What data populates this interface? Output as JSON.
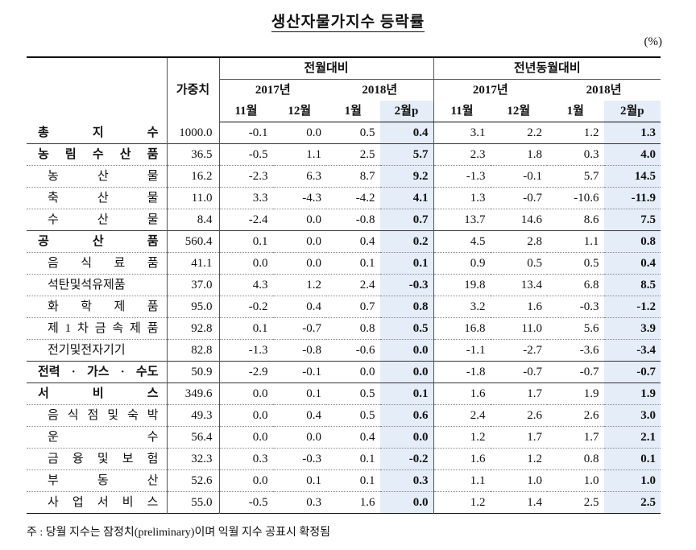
{
  "title": "생산자물가지수 등락률",
  "unit": "(%)",
  "header": {
    "weight": "가중치",
    "groups": [
      {
        "title": "전월대비",
        "years": [
          {
            "label": "2017년",
            "months": [
              "11월",
              "12월"
            ]
          },
          {
            "label": "2018년",
            "months": [
              "1월",
              "2월p"
            ]
          }
        ]
      },
      {
        "title": "전년동월대비",
        "years": [
          {
            "label": "2017년",
            "months": [
              "11월",
              "12월"
            ]
          },
          {
            "label": "2018년",
            "months": [
              "1월",
              "2월p"
            ]
          }
        ]
      }
    ]
  },
  "table": {
    "groups": [
      {
        "label": "총 지 수",
        "weight": "1000.0",
        "values": [
          "-0.1",
          "0.0",
          "0.5",
          "0.4",
          "3.1",
          "2.2",
          "1.2",
          "1.3"
        ],
        "items": []
      },
      {
        "label": "농 림 수 산 품",
        "weight": "36.5",
        "values": [
          "-0.5",
          "1.1",
          "2.5",
          "5.7",
          "2.3",
          "1.8",
          "0.3",
          "4.0"
        ],
        "items": [
          {
            "label": "농 산 물",
            "weight": "16.2",
            "values": [
              "-2.3",
              "6.3",
              "8.7",
              "9.2",
              "-1.3",
              "-0.1",
              "5.7",
              "14.5"
            ]
          },
          {
            "label": "축 산 물",
            "weight": "11.0",
            "values": [
              "3.3",
              "-4.3",
              "-4.2",
              "4.1",
              "1.3",
              "-0.7",
              "-10.6",
              "-11.9"
            ]
          },
          {
            "label": "수 산 물",
            "weight": "8.4",
            "values": [
              "-2.4",
              "0.0",
              "-0.8",
              "0.7",
              "13.7",
              "14.6",
              "8.6",
              "7.5"
            ]
          }
        ]
      },
      {
        "label": "공 산 품",
        "weight": "560.4",
        "values": [
          "0.1",
          "0.0",
          "0.4",
          "0.2",
          "4.5",
          "2.8",
          "1.1",
          "0.8"
        ],
        "items": [
          {
            "label": "음 식 료 품",
            "weight": "41.1",
            "values": [
              "0.0",
              "0.0",
              "0.1",
              "0.1",
              "0.9",
              "0.5",
              "0.5",
              "0.4"
            ]
          },
          {
            "label": "석탄및석유제품",
            "weight": "37.0",
            "values": [
              "4.3",
              "1.2",
              "2.4",
              "-0.3",
              "19.8",
              "13.4",
              "6.8",
              "8.5"
            ]
          },
          {
            "label": "화 학 제 품",
            "weight": "95.0",
            "values": [
              "-0.2",
              "0.4",
              "0.7",
              "0.8",
              "3.2",
              "1.6",
              "-0.3",
              "-1.2"
            ]
          },
          {
            "label": "제 1 차 금 속 제 품",
            "weight": "92.8",
            "values": [
              "0.1",
              "-0.7",
              "0.8",
              "0.5",
              "16.8",
              "11.0",
              "5.6",
              "3.9"
            ]
          },
          {
            "label": "전기및전자기기",
            "weight": "82.8",
            "values": [
              "-1.3",
              "-0.8",
              "-0.6",
              "0.0",
              "-1.1",
              "-2.7",
              "-3.6",
              "-3.4"
            ]
          }
        ]
      },
      {
        "label": "전력 · 가스 · 수도",
        "weight": "50.9",
        "values": [
          "-2.9",
          "-0.1",
          "0.0",
          "0.0",
          "-1.8",
          "-0.7",
          "-0.7",
          "-0.7"
        ],
        "items": []
      },
      {
        "label": "서 비 스",
        "weight": "349.6",
        "values": [
          "0.0",
          "0.1",
          "0.5",
          "0.1",
          "1.6",
          "1.7",
          "1.9",
          "1.9"
        ],
        "items": [
          {
            "label": "음 식 점 및 숙 박",
            "weight": "49.3",
            "values": [
              "0.0",
              "0.4",
              "0.5",
              "0.6",
              "2.4",
              "2.6",
              "2.6",
              "3.0"
            ]
          },
          {
            "label": "운 수",
            "weight": "56.4",
            "values": [
              "0.0",
              "0.0",
              "0.4",
              "0.0",
              "1.2",
              "1.7",
              "1.7",
              "2.1"
            ]
          },
          {
            "label": "금 융 및 보 험",
            "weight": "32.3",
            "values": [
              "0.3",
              "-0.3",
              "0.1",
              "-0.2",
              "1.6",
              "1.2",
              "0.8",
              "0.1"
            ]
          },
          {
            "label": "부 동 산",
            "weight": "52.6",
            "values": [
              "0.0",
              "0.1",
              "0.1",
              "0.3",
              "1.1",
              "1.0",
              "1.0",
              "1.0"
            ]
          },
          {
            "label": "사 업 서 비 스",
            "weight": "55.0",
            "values": [
              "-0.5",
              "0.3",
              "1.6",
              "0.0",
              "1.2",
              "1.4",
              "2.5",
              "2.5"
            ]
          }
        ]
      }
    ]
  },
  "footnote": "주 : 당월 지수는 잠정치(preliminary)이며 익월 지수 공표시 확정됨"
}
